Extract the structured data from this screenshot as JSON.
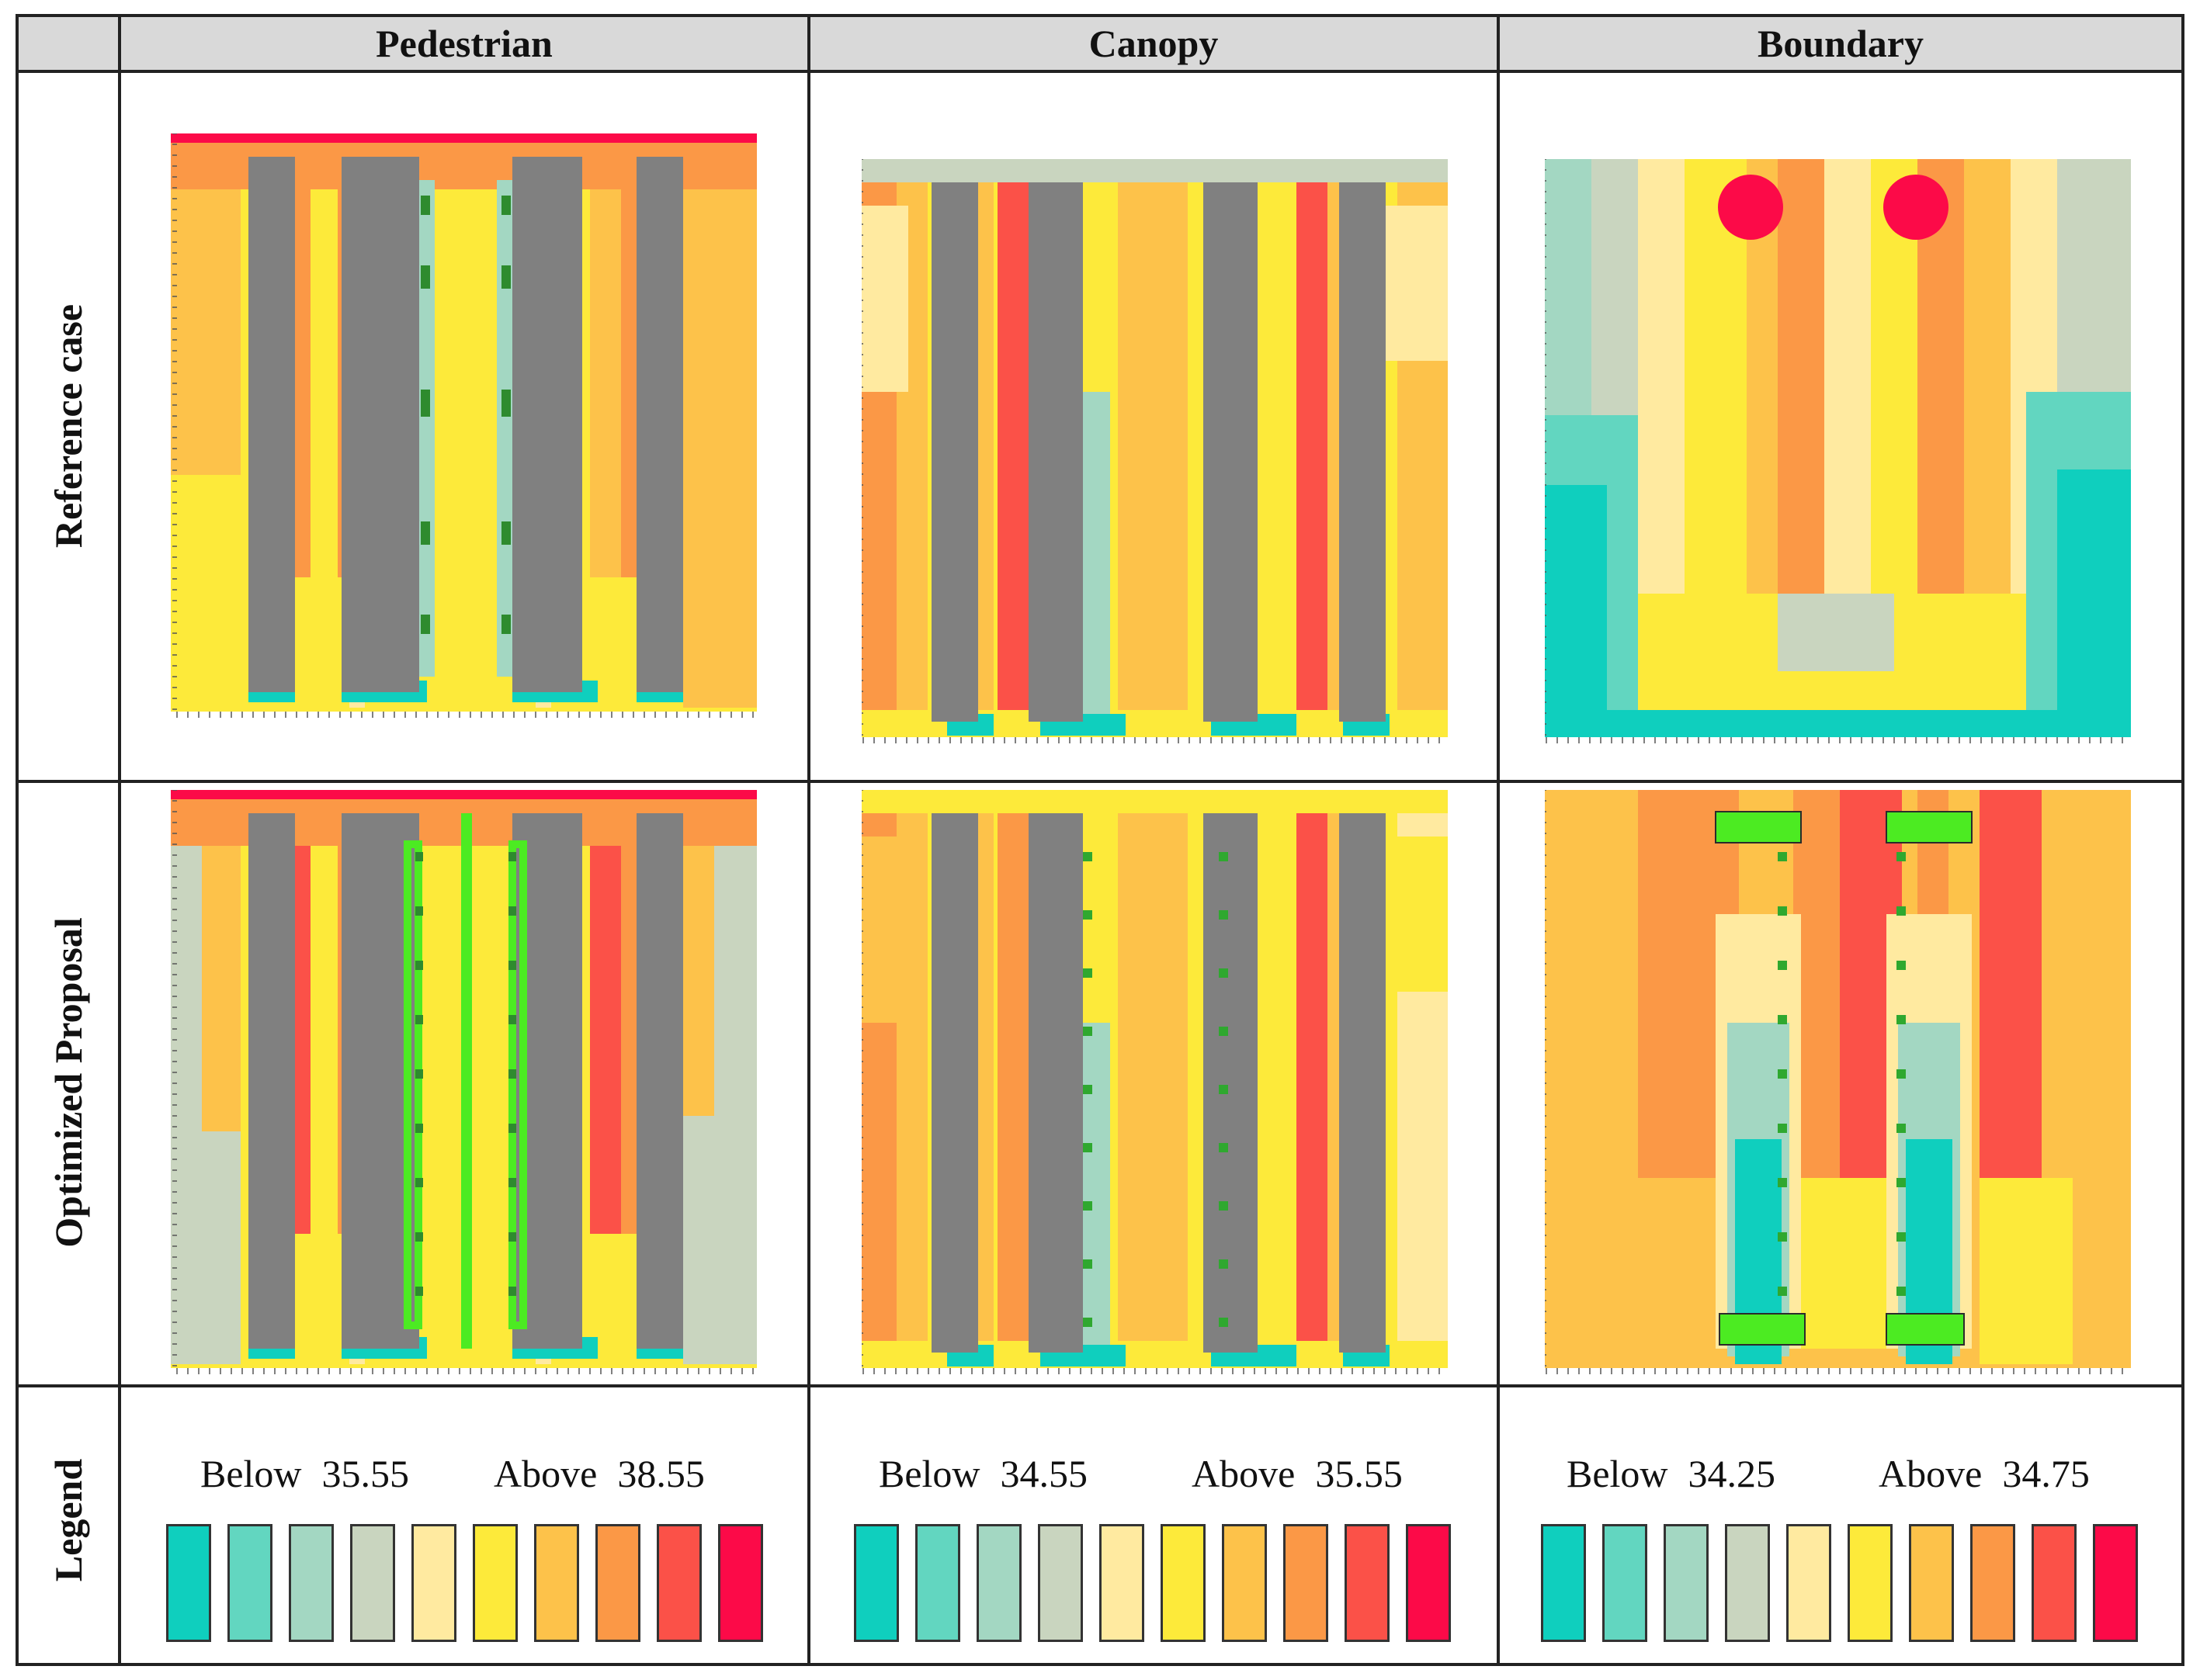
{
  "columns": [
    "Pedestrian",
    "Canopy",
    "Boundary"
  ],
  "rows": [
    "Reference case",
    "Optimized Proposal",
    "Legend"
  ],
  "legends": [
    {
      "below_label": "Below",
      "below_value": "35.55",
      "above_label": "Above",
      "above_value": "38.55"
    },
    {
      "below_label": "Below",
      "below_value": "34.55",
      "above_label": "Above",
      "above_value": "35.55"
    },
    {
      "below_label": "Below",
      "below_value": "34.25",
      "above_label": "Above",
      "above_value": "34.75"
    }
  ],
  "palette": [
    "#0fcfbe",
    "#62d6c0",
    "#a3d7c2",
    "#c9d5bf",
    "#ffeaa0",
    "#fdea3a",
    "#fdc24a",
    "#fb9846",
    "#fb5148",
    "#fc0a48"
  ],
  "colors": {
    "building": "#808080",
    "vegetation_dark": "#2e8b2e",
    "vegetation_light": "#4ceb22",
    "grid": "#222222"
  }
}
